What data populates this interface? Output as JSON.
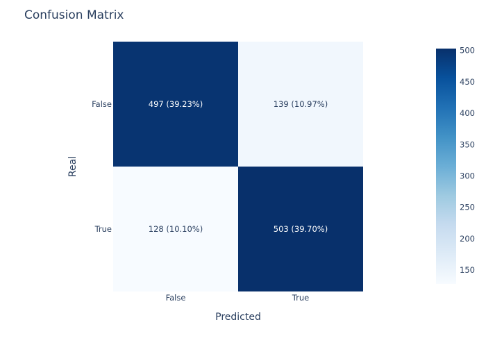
{
  "chart_data": {
    "type": "heatmap",
    "title": "Confusion Matrix",
    "xlabel": "Predicted",
    "ylabel": "Real",
    "x_categories": [
      "False",
      "True"
    ],
    "y_categories": [
      "False",
      "True"
    ],
    "values": [
      [
        497,
        139
      ],
      [
        128,
        503
      ]
    ],
    "annotations": [
      [
        "497 (39.23%)",
        "139 (10.97%)"
      ],
      [
        "128 (10.10%)",
        "503 (39.70%)"
      ]
    ],
    "colorscale": "Blues",
    "colorbar": {
      "range": [
        128,
        503
      ],
      "ticks": [
        150,
        200,
        250,
        300,
        350,
        400,
        450,
        500
      ]
    },
    "colors": {
      "high": "#08306b",
      "low": "#f7fbff",
      "text_dark": "#2a3f5f"
    }
  }
}
